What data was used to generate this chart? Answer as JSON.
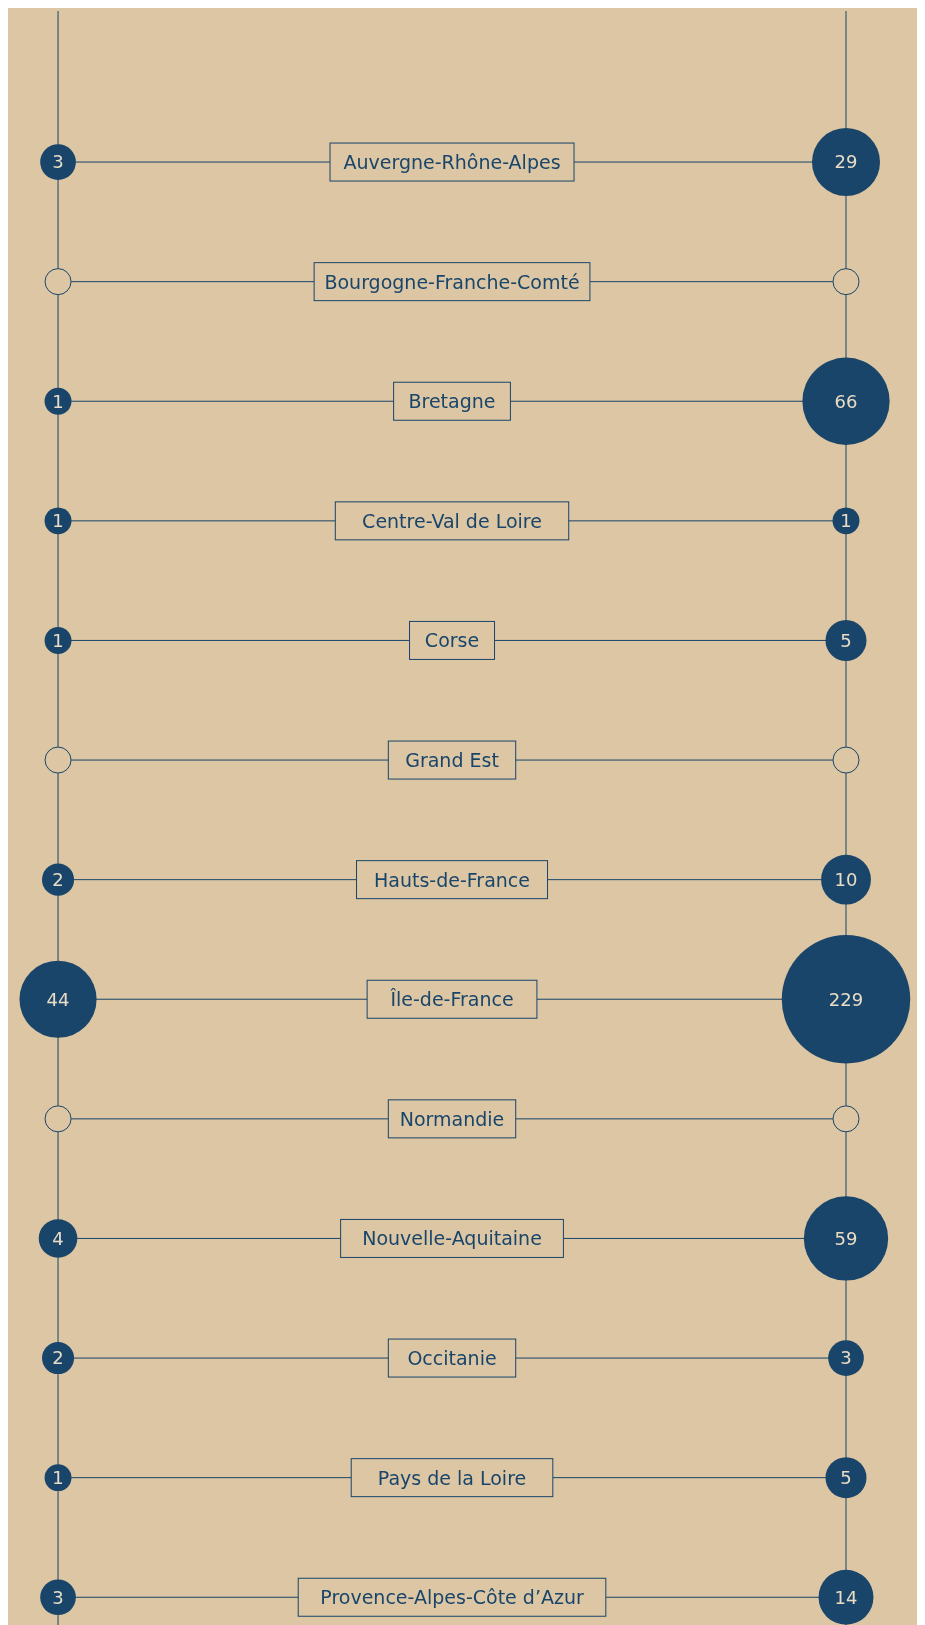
{
  "chart_data": {
    "type": "other",
    "categories": [
      "Auvergne-Rhône-Alpes",
      "Bourgogne-Franche-Comté",
      "Bretagne",
      "Centre-Val de Loire",
      "Corse",
      "Grand Est",
      "Hauts-de-France",
      "Île-de-France",
      "Normandie",
      "Nouvelle-Aquitaine",
      "Occitanie",
      "Pays de la Loire",
      "Provence-Alpes-Côte d’Azur"
    ],
    "series": [
      {
        "color": "#19456b",
        "values": [
          3,
          null,
          1,
          1,
          1,
          null,
          2,
          44,
          null,
          4,
          2,
          1,
          3
        ]
      },
      {
        "color": "#19456b",
        "values": [
          29,
          null,
          66,
          1,
          5,
          null,
          10,
          229,
          null,
          59,
          3,
          5,
          14
        ]
      }
    ],
    "data_labels": true
  }
}
